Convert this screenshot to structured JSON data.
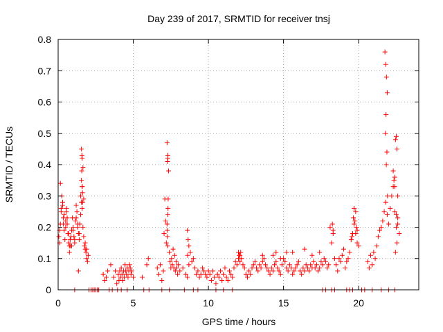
{
  "chart_data": {
    "type": "scatter",
    "title": "Day 239 of 2017, SRMTID for receiver tnsj",
    "xlabel": "GPS time / hours",
    "ylabel": "SRMTID / TECUs",
    "xlim": [
      0,
      24
    ],
    "ylim": [
      0,
      0.8
    ],
    "xticks": [
      0,
      5,
      10,
      15,
      20
    ],
    "xtick_labels": [
      "0",
      "5",
      "10",
      "15",
      "20"
    ],
    "yticks": [
      0,
      0.1,
      0.2,
      0.3,
      0.4,
      0.5,
      0.6,
      0.7,
      0.8
    ],
    "ytick_labels": [
      "0",
      "0.1",
      "0.2",
      "0.3",
      "0.4",
      "0.5",
      "0.6",
      "0.7",
      "0.8"
    ],
    "grid": true,
    "marker": "+",
    "color": "#ff0000",
    "series": [
      {
        "name": "SRMTID",
        "x": [
          0.05,
          0.1,
          0.15,
          0.2,
          0.25,
          0.3,
          0.35,
          0.4,
          0.45,
          0.5,
          0.55,
          0.6,
          0.65,
          0.7,
          0.75,
          0.8,
          0.85,
          0.9,
          0.95,
          1.0,
          1.05,
          1.1,
          1.15,
          1.2,
          1.25,
          1.3,
          1.35,
          1.4,
          1.45,
          1.5,
          1.55,
          1.6,
          1.65,
          1.7,
          1.75,
          1.8,
          1.85,
          1.9,
          1.95,
          2.0,
          0.1,
          0.2,
          0.3,
          0.4,
          0.5,
          0.6,
          0.7,
          0.8,
          0.9,
          1.0,
          1.1,
          1.2,
          1.3,
          1.4,
          1.5,
          1.6,
          1.7,
          1.8,
          1.9,
          0.15,
          0.35,
          0.55,
          0.75,
          1.35,
          1.55,
          1.6,
          1.65,
          1.55,
          1.6,
          1.62,
          1.58,
          1.63,
          1.57,
          3.0,
          3.1,
          3.2,
          3.3,
          3.5,
          3.7,
          3.8,
          3.9,
          4.0,
          4.05,
          4.1,
          4.15,
          4.2,
          4.25,
          4.3,
          4.35,
          4.4,
          4.45,
          4.5,
          4.55,
          4.6,
          4.65,
          4.7,
          4.75,
          4.8,
          4.85,
          4.9,
          5.0,
          5.6,
          5.9,
          6.0,
          6.6,
          6.7,
          6.8,
          6.9,
          7.0,
          7.05,
          7.1,
          7.15,
          7.2,
          7.25,
          7.3,
          7.35,
          7.4,
          7.45,
          7.5,
          7.55,
          7.6,
          7.65,
          7.7,
          7.75,
          7.8,
          7.85,
          7.9,
          7.95,
          8.0,
          7.25,
          7.3,
          7.28,
          7.32,
          7.27,
          7.3,
          7.26,
          7.29,
          7.31,
          8.1,
          8.3,
          8.5,
          8.6,
          8.7,
          8.8,
          8.9,
          9.0,
          9.1,
          9.2,
          9.3,
          9.4,
          9.5,
          9.6,
          9.7,
          9.8,
          9.9,
          10.0,
          8.6,
          8.65,
          8.7,
          8.62,
          10.1,
          10.2,
          10.3,
          10.4,
          10.5,
          10.6,
          10.7,
          10.8,
          10.9,
          11.0,
          11.1,
          11.2,
          11.3,
          11.4,
          11.5,
          11.6,
          11.7,
          11.8,
          11.9,
          12.0,
          12.1,
          12.2,
          12.3,
          12.4,
          12.5,
          12.6,
          12.7,
          12.8,
          12.9,
          13.0,
          13.1,
          13.2,
          13.3,
          13.4,
          13.5,
          13.6,
          13.7,
          13.8,
          13.9,
          14.0,
          14.1,
          14.2,
          14.3,
          14.4,
          14.5,
          14.6,
          14.7,
          14.8,
          14.9,
          15.0,
          15.1,
          15.2,
          15.3,
          15.4,
          15.5,
          15.6,
          15.7,
          15.8,
          15.9,
          16.0,
          16.1,
          16.2,
          16.3,
          16.4,
          16.5,
          16.6,
          16.7,
          16.8,
          16.9,
          17.0,
          17.1,
          17.2,
          17.3,
          17.4,
          17.5,
          17.6,
          17.7,
          17.8,
          17.9,
          18.0,
          12.0,
          12.05,
          12.1,
          12.15,
          13.6,
          14.3,
          14.5,
          14.8,
          15.2,
          15.6,
          16.4,
          16.9,
          17.4,
          18.1,
          18.2,
          18.3,
          18.4,
          18.5,
          18.6,
          18.7,
          18.8,
          18.9,
          19.0,
          19.1,
          19.2,
          19.3,
          19.4,
          19.5,
          19.6,
          19.7,
          19.8,
          19.9,
          20.0,
          18.25,
          18.3,
          19.55,
          19.65,
          19.7,
          19.75,
          19.8,
          19.85,
          19.9,
          20.6,
          20.7,
          20.8,
          20.9,
          21.0,
          21.1,
          21.2,
          21.3,
          21.4,
          21.5,
          21.6,
          21.7,
          21.8,
          21.9,
          22.0,
          22.1,
          22.2,
          22.3,
          22.4,
          22.5,
          22.6,
          22.7,
          21.75,
          21.8,
          21.85,
          21.9,
          21.82,
          21.78,
          21.88,
          21.84,
          21.92,
          22.3,
          22.35,
          22.4,
          22.45,
          22.5,
          22.55,
          22.6,
          22.4,
          22.5,
          22.55,
          22.45,
          22.6,
          1.1,
          2.05,
          2.2,
          2.3,
          2.4,
          2.5,
          2.6,
          2.7,
          3.4,
          3.6,
          3.95,
          4.2,
          4.6,
          5.7,
          6.05,
          6.9,
          7.4,
          8.4,
          9.0,
          9.3,
          10.5,
          11.0,
          11.6,
          17.6,
          17.8,
          18.2,
          18.4,
          19.2,
          19.4,
          19.6,
          20.2,
          20.4,
          20.9,
          21.5,
          22.0,
          22.4
        ],
        "y": [
          0.17,
          0.15,
          0.21,
          0.26,
          0.3,
          0.27,
          0.23,
          0.19,
          0.16,
          0.22,
          0.25,
          0.21,
          0.18,
          0.15,
          0.12,
          0.14,
          0.17,
          0.19,
          0.23,
          0.2,
          0.17,
          0.15,
          0.22,
          0.27,
          0.25,
          0.2,
          0.18,
          0.16,
          0.21,
          0.24,
          0.28,
          0.26,
          0.2,
          0.17,
          0.14,
          0.13,
          0.12,
          0.1,
          0.09,
          0.11,
          0.19,
          0.25,
          0.28,
          0.24,
          0.2,
          0.23,
          0.18,
          0.16,
          0.14,
          0.19,
          0.16,
          0.23,
          0.21,
          0.18,
          0.3,
          0.33,
          0.29,
          0.15,
          0.13,
          0.34,
          0.21,
          0.26,
          0.14,
          0.06,
          0.45,
          0.42,
          0.39,
          0.35,
          0.33,
          0.31,
          0.43,
          0.28,
          0.38,
          0.05,
          0.03,
          0.04,
          0.06,
          0.08,
          0.04,
          0.06,
          0.02,
          0.05,
          0.03,
          0.06,
          0.04,
          0.07,
          0.05,
          0.03,
          0.06,
          0.04,
          0.08,
          0.06,
          0.05,
          0.07,
          0.04,
          0.06,
          0.08,
          0.07,
          0.05,
          0.06,
          0.04,
          0.04,
          0.08,
          0.1,
          0.07,
          0.05,
          0.08,
          0.03,
          0.06,
          0.18,
          0.29,
          0.22,
          0.15,
          0.47,
          0.42,
          0.38,
          0.12,
          0.09,
          0.07,
          0.1,
          0.08,
          0.13,
          0.07,
          0.11,
          0.06,
          0.09,
          0.07,
          0.05,
          0.08,
          0.21,
          0.24,
          0.41,
          0.29,
          0.17,
          0.43,
          0.19,
          0.14,
          0.26,
          0.06,
          0.07,
          0.05,
          0.04,
          0.08,
          0.12,
          0.09,
          0.1,
          0.07,
          0.05,
          0.06,
          0.04,
          0.05,
          0.07,
          0.06,
          0.05,
          0.04,
          0.06,
          0.19,
          0.16,
          0.14,
          0.11,
          0.05,
          0.03,
          0.06,
          0.04,
          0.02,
          0.05,
          0.04,
          0.06,
          0.03,
          0.05,
          0.07,
          0.04,
          0.03,
          0.06,
          0.05,
          0.04,
          0.07,
          0.09,
          0.08,
          0.1,
          0.11,
          0.1,
          0.08,
          0.07,
          0.05,
          0.04,
          0.06,
          0.05,
          0.07,
          0.08,
          0.09,
          0.07,
          0.06,
          0.08,
          0.07,
          0.09,
          0.1,
          0.08,
          0.07,
          0.06,
          0.05,
          0.07,
          0.06,
          0.08,
          0.09,
          0.07,
          0.06,
          0.05,
          0.08,
          0.1,
          0.09,
          0.07,
          0.06,
          0.08,
          0.07,
          0.05,
          0.06,
          0.07,
          0.08,
          0.09,
          0.06,
          0.05,
          0.07,
          0.06,
          0.08,
          0.07,
          0.06,
          0.08,
          0.07,
          0.09,
          0.07,
          0.08,
          0.06,
          0.07,
          0.09,
          0.08,
          0.1,
          0.09,
          0.07,
          0.08,
          0.12,
          0.11,
          0.09,
          0.12,
          0.11,
          0.11,
          0.12,
          0.1,
          0.12,
          0.12,
          0.13,
          0.11,
          0.12,
          0.2,
          0.15,
          0.18,
          0.1,
          0.08,
          0.06,
          0.1,
          0.09,
          0.11,
          0.13,
          0.07,
          0.09,
          0.1,
          0.12,
          0.16,
          0.18,
          0.21,
          0.25,
          0.19,
          0.14,
          0.21,
          0.19,
          0.17,
          0.23,
          0.26,
          0.22,
          0.18,
          0.2,
          0.15,
          0.09,
          0.07,
          0.11,
          0.08,
          0.12,
          0.1,
          0.14,
          0.17,
          0.19,
          0.2,
          0.22,
          0.25,
          0.28,
          0.24,
          0.21,
          0.26,
          0.3,
          0.33,
          0.36,
          0.24,
          0.21,
          0.18,
          0.76,
          0.72,
          0.68,
          0.63,
          0.56,
          0.5,
          0.44,
          0.4,
          0.3,
          0.38,
          0.35,
          0.33,
          0.48,
          0.49,
          0.45,
          0.3,
          0.25,
          0.2,
          0.15,
          0.12,
          0.23,
          0,
          0,
          0,
          0,
          0,
          0,
          0,
          0,
          0,
          0,
          0,
          0,
          0,
          0,
          0,
          0,
          0,
          0,
          0,
          0,
          0,
          0,
          0,
          0,
          0,
          0,
          0,
          0,
          0,
          0,
          0,
          0,
          0,
          0,
          0,
          0
        ]
      }
    ]
  }
}
